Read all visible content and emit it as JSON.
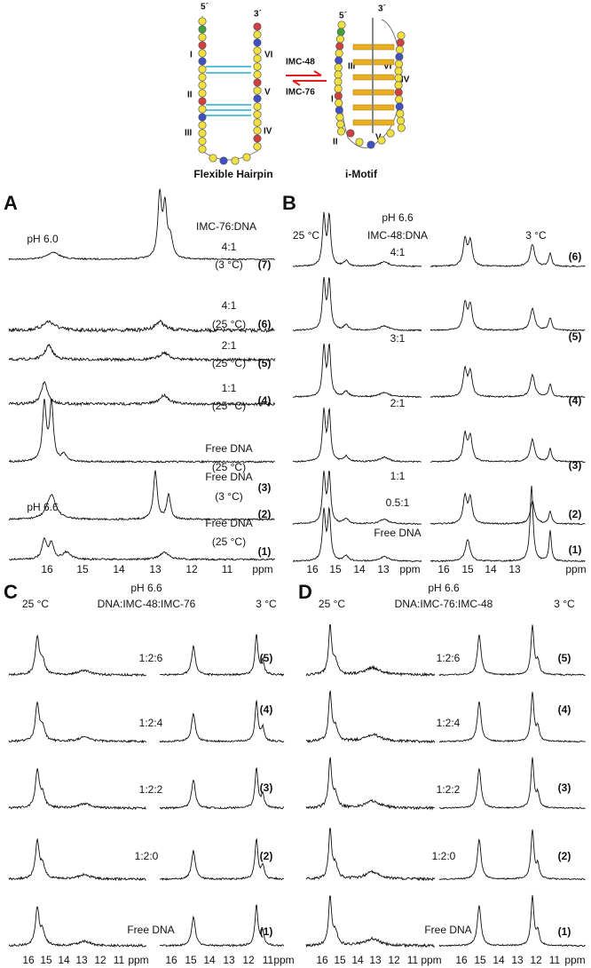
{
  "schematic": {
    "hairpin_5": "5´",
    "hairpin_3": "3´",
    "hairpin_regions": [
      "I",
      "II",
      "III",
      "IV",
      "V",
      "VI"
    ],
    "arrow_top": "IMC-48",
    "arrow_bottom": "IMC-76",
    "imotif_5": "5´",
    "imotif_3": "3´",
    "imotif_regions": [
      "I",
      "II",
      "III",
      "IV",
      "V",
      "VI"
    ],
    "hairpin_label": "Flexible Hairpin",
    "imotif_label": "i-Motif"
  },
  "panels": [
    {
      "letter": "A",
      "texts": [
        "pH 6.0",
        "IMC-76:DNA",
        "4:1",
        "(3 °C)",
        "(7)",
        "4:1",
        "(25 °C)",
        "(6)",
        "2:1",
        "(25 °C)",
        "(5)",
        "1:1",
        "(25 °C)",
        "(4)",
        "Free DNA",
        "(25 °C)",
        "(3)",
        "pH 6.6",
        "Free DNA",
        "(3 °C)",
        "(2)",
        "Free DNA",
        "(25 °C)",
        "(1)"
      ],
      "ticks": [
        16,
        15,
        14,
        13,
        12,
        11,
        "ppm"
      ]
    },
    {
      "letter": "B",
      "texts": [
        "pH 6.6",
        "25 °C",
        "IMC-48:DNA",
        "3 °C",
        "4:1",
        "(6)",
        "3:1",
        "(5)",
        "2:1",
        "(4)",
        "1:1",
        "(3)",
        "0.5:1",
        "(2)",
        "Free DNA",
        "(1)"
      ],
      "ticks": [
        16,
        15,
        14,
        13,
        "ppm",
        16,
        15,
        14,
        13,
        "ppm"
      ]
    },
    {
      "letter": "C",
      "texts": [
        "pH 6.6",
        "25 °C",
        "DNA:IMC-48:IMC-76",
        "3 °C",
        "1:2:6",
        "(5)",
        "1:2:4",
        "(4)",
        "1:2:2",
        "(3)",
        "1:2:0",
        "(2)",
        "Free DNA",
        "(1)"
      ],
      "ticks": [
        16,
        15,
        14,
        13,
        12,
        11,
        "ppm",
        16,
        15,
        14,
        13,
        12,
        11,
        "ppm"
      ]
    },
    {
      "letter": "D",
      "texts": [
        "pH 6.6",
        "25 °C",
        "DNA:IMC-76:IMC-48",
        "3 °C",
        "1:2:6",
        "(5)",
        "1:2:4",
        "(4)",
        "1:2:2",
        "(3)",
        "1:2:0",
        "(2)",
        "Free DNA",
        "(1)"
      ],
      "ticks": [
        16,
        15,
        14,
        13,
        12,
        11,
        "ppm",
        16,
        15,
        14,
        13,
        12,
        11,
        "ppm"
      ]
    }
  ]
}
